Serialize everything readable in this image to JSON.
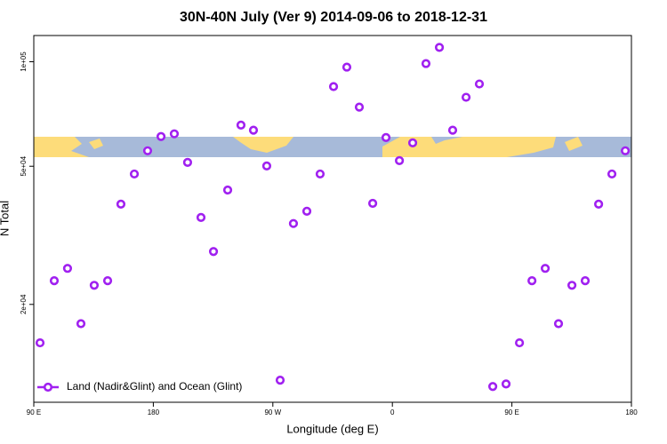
{
  "chart_data": {
    "type": "scatter",
    "title": "30N-40N July (Ver 9)   2014-09-06 to 2018-12-31",
    "x_label": "Longitude (deg E)",
    "y_label": "N Total",
    "log_y": true,
    "legend": "bottomleft",
    "xlim": [
      90,
      540
    ],
    "ylim": [
      10450,
      119000
    ],
    "xticks": [
      {
        "value": 90,
        "label": "90 E"
      },
      {
        "value": 180,
        "label": "180"
      },
      {
        "value": 270,
        "label": "90 W"
      },
      {
        "value": 360,
        "label": "0"
      },
      {
        "value": 450,
        "label": "90 E"
      },
      {
        "value": 540,
        "label": "180"
      }
    ],
    "yticks": [
      {
        "value": 20000,
        "label": "2e+04"
      },
      {
        "value": 50000,
        "label": "5e+04"
      },
      {
        "value": 100000,
        "label": "1e+05"
      }
    ],
    "series": [
      {
        "name": "Land (Nadir&Glint) and Ocean (Glint)",
        "color": "#a020f0",
        "x": [
          94.7,
          105.4,
          115.4,
          125.5,
          135.5,
          145.6,
          155.6,
          165.7,
          175.7,
          185.8,
          195.8,
          205.8,
          215.9,
          225.3,
          236,
          246,
          255.4,
          265.4,
          275.5,
          285.5,
          295.6,
          305.6,
          315.7,
          325.7,
          335.1,
          345.2,
          355.2,
          365.3,
          375.3,
          385.3,
          395.4,
          405.4,
          415.5,
          425.5,
          435.6,
          445.6,
          455.7,
          465.1,
          475.1,
          485.1,
          495.2,
          505.2,
          515.3,
          525.3,
          535.4
        ],
        "values": [
          15500,
          23400,
          25400,
          17600,
          22700,
          23400,
          38900,
          47500,
          55400,
          60900,
          62000,
          51300,
          35600,
          28400,
          42700,
          65700,
          63500,
          50100,
          12100,
          34200,
          37100,
          47500,
          84800,
          96500,
          74000,
          39100,
          60500,
          51900,
          58400,
          98800,
          110000,
          63500,
          79000,
          86300,
          11600,
          11800,
          15500,
          23400,
          25400,
          17600,
          22700,
          23400,
          38900,
          47500,
          55400
        ]
      }
    ]
  }
}
